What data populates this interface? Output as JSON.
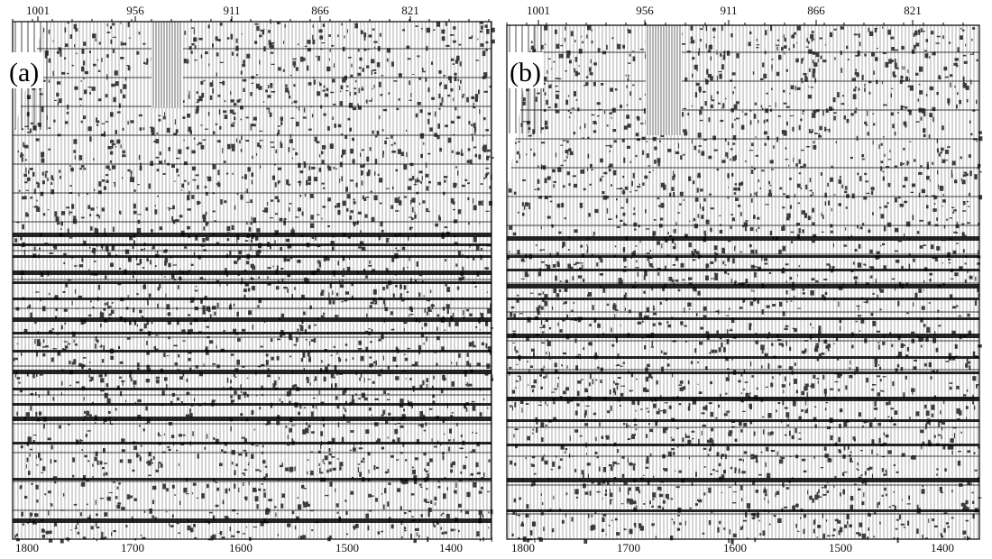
{
  "figure": {
    "background": "#ffffff",
    "ink": "#000000",
    "panels": [
      {
        "label": "(a)",
        "top_labels": [
          "1001",
          "956",
          "911",
          "866",
          "821"
        ],
        "bottom_labels": [
          "1800",
          "1700",
          "1600",
          "1500",
          "1400"
        ]
      },
      {
        "label": "(b)",
        "top_labels": [
          "1001",
          "956",
          "911",
          "866",
          "821"
        ],
        "bottom_labels": [
          "1800",
          "1700",
          "1600",
          "1500",
          "1400"
        ]
      }
    ]
  }
}
